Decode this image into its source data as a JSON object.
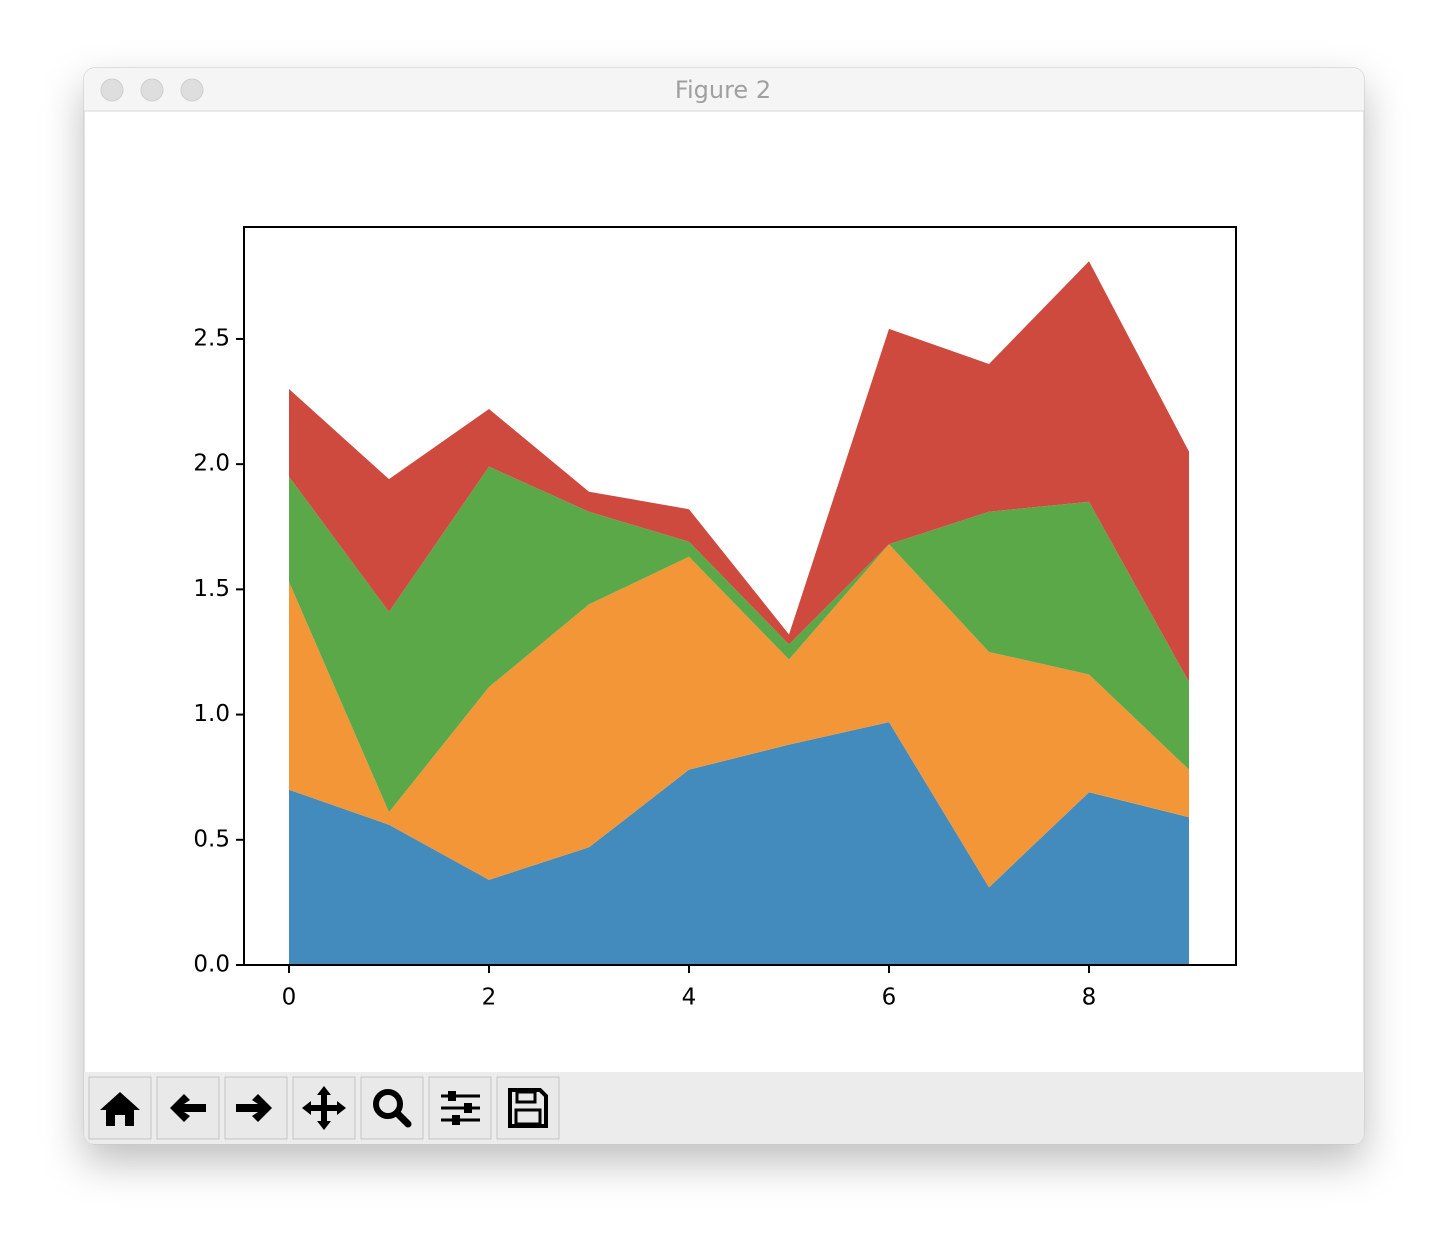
{
  "window_title": "Figure 2",
  "chart_data": {
    "type": "stackplot",
    "x": [
      0,
      1,
      2,
      3,
      4,
      5,
      6,
      7,
      8,
      9
    ],
    "series": [
      {
        "color": "#448bbd",
        "values": [
          0.7,
          0.56,
          0.34,
          0.47,
          0.78,
          0.88,
          0.97,
          0.31,
          0.69,
          0.59
        ]
      },
      {
        "color": "#f39638",
        "values": [
          0.83,
          0.05,
          0.77,
          0.97,
          0.85,
          0.34,
          0.71,
          0.94,
          0.47,
          0.19
        ]
      },
      {
        "color": "#5ba849",
        "values": [
          0.42,
          0.8,
          0.88,
          0.37,
          0.06,
          0.06,
          0.0,
          0.56,
          0.69,
          0.35
        ]
      },
      {
        "color": "#ce4a3e",
        "values": [
          0.35,
          0.53,
          0.23,
          0.08,
          0.13,
          0.04,
          0.86,
          0.59,
          0.96,
          0.92
        ]
      }
    ],
    "xlim": [
      -0.45,
      9.47
    ],
    "ylim": [
      0,
      2.947
    ],
    "xticks": [
      0,
      2,
      4,
      6,
      8
    ],
    "yticks": [
      {
        "value": 0,
        "label": "0.0"
      },
      0.5,
      {
        "value": 1,
        "label": "1.0"
      },
      1.5,
      {
        "value": 2,
        "label": "2.0"
      },
      2.5
    ]
  }
}
